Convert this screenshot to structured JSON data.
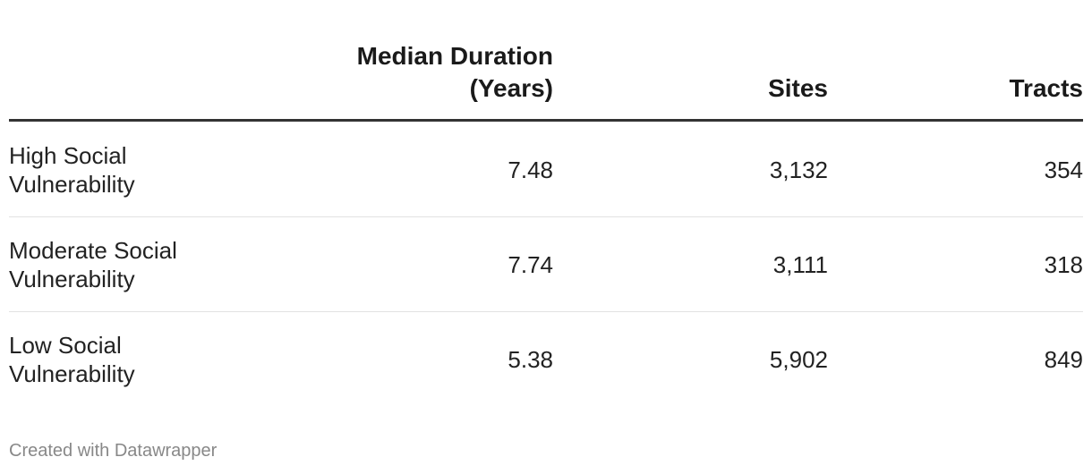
{
  "table": {
    "header": [
      "Median Duration (Years)",
      "Sites",
      "Tracts"
    ],
    "rows": [
      [
        "High Social Vulnerability",
        "7.48",
        "3,132",
        "354"
      ],
      [
        "Moderate Social Vulnerability",
        "7.74",
        "3,111",
        "318"
      ],
      [
        "Low Social Vulnerability",
        "5.38",
        "5,902",
        "849"
      ]
    ]
  },
  "footer": "Created with Datawrapper"
}
